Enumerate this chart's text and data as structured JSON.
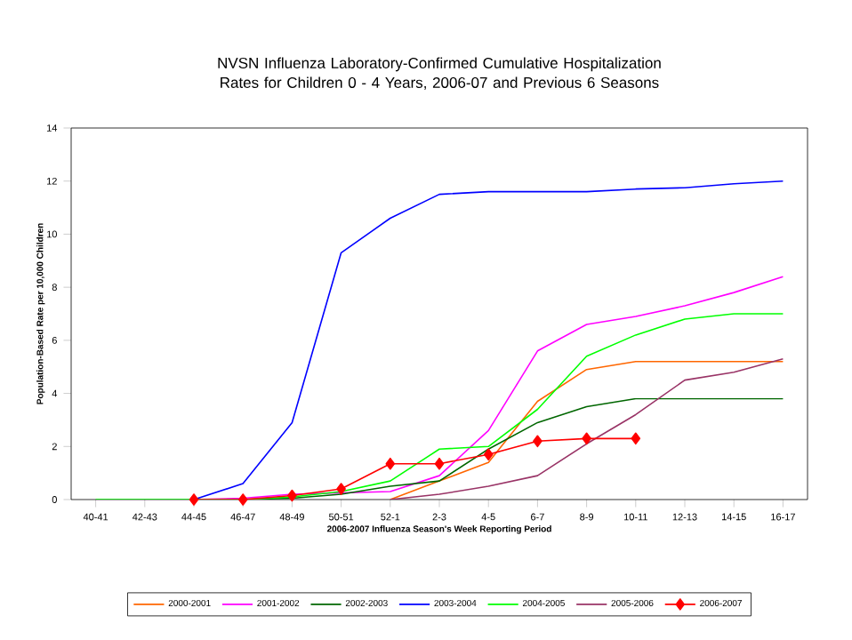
{
  "chart_data": {
    "type": "line",
    "title": "NVSN Influenza Laboratory-Confirmed Cumulative Hospitalization Rates for Children 0 - 4 Years, 2006-07 and Previous 6 Seasons",
    "xlabel": "2006-2007 Influenza Season's Week Reporting Period",
    "ylabel": "Population-Based Rate per 10,000 Children",
    "categories": [
      "40-41",
      "42-43",
      "44-45",
      "46-47",
      "48-49",
      "50-51",
      "52-1",
      "2-3",
      "4-5",
      "6-7",
      "8-9",
      "10-11",
      "12-13",
      "14-15",
      "16-17"
    ],
    "ylim": [
      0,
      14
    ],
    "yticks": [
      0,
      2,
      4,
      6,
      8,
      10,
      12,
      14
    ],
    "grid": false,
    "legend": "bottom",
    "series": [
      {
        "name": "2000-2001",
        "color": "#ff6600",
        "values": [
          null,
          null,
          null,
          null,
          null,
          null,
          0,
          0.7,
          1.4,
          3.7,
          4.9,
          5.2,
          5.2,
          5.2,
          5.2
        ]
      },
      {
        "name": "2001-2002",
        "color": "#ff00ff",
        "values": [
          null,
          null,
          0,
          0.05,
          0.2,
          0.25,
          0.3,
          0.9,
          2.6,
          5.6,
          6.6,
          6.9,
          7.3,
          7.8,
          8.4
        ]
      },
      {
        "name": "2002-2003",
        "color": "#006600",
        "values": [
          null,
          null,
          0,
          0,
          0.05,
          0.2,
          0.5,
          0.7,
          1.9,
          2.9,
          3.5,
          3.8,
          3.8,
          3.8,
          3.8
        ]
      },
      {
        "name": "2003-2004",
        "color": "#0000ff",
        "values": [
          null,
          null,
          0,
          0.6,
          2.9,
          9.3,
          10.6,
          11.5,
          11.6,
          11.6,
          11.6,
          11.7,
          11.75,
          11.9,
          12.0
        ]
      },
      {
        "name": "2004-2005",
        "color": "#00ff00",
        "values": [
          0,
          0,
          0,
          0,
          0.1,
          0.3,
          0.7,
          1.9,
          2.0,
          3.4,
          5.4,
          6.2,
          6.8,
          7.0,
          7.0
        ]
      },
      {
        "name": "2005-2006",
        "color": "#993366",
        "values": [
          null,
          null,
          null,
          null,
          null,
          null,
          0,
          0.2,
          0.5,
          0.9,
          2.1,
          3.2,
          4.5,
          4.8,
          5.3
        ]
      },
      {
        "name": "2006-2007",
        "color": "#ff0000",
        "marker": "diamond",
        "values": [
          null,
          null,
          0,
          0,
          0.15,
          0.4,
          1.35,
          1.35,
          1.7,
          2.2,
          2.3,
          2.3,
          null,
          null,
          null
        ]
      }
    ]
  }
}
